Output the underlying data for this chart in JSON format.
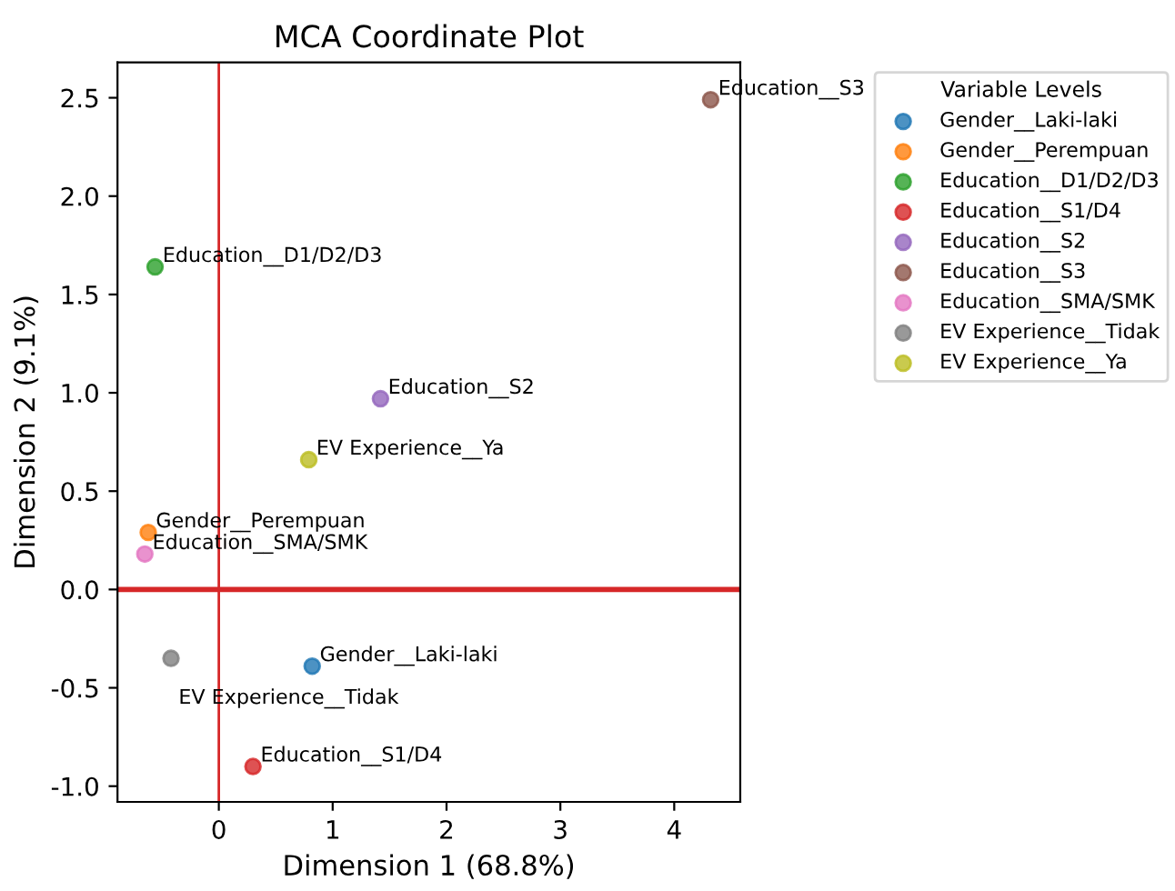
{
  "chart_data": {
    "type": "scatter",
    "title": "MCA Coordinate Plot",
    "xlabel": "Dimension 1 (68.8%)",
    "ylabel": "Dimension 2 (9.1%)",
    "legend_title": "Variable Levels",
    "legend": "top right",
    "xlim": [
      -0.89,
      4.58
    ],
    "ylim": [
      -1.08,
      2.68
    ],
    "xticks": [
      0,
      1,
      2,
      3,
      4
    ],
    "yticks": [
      {
        "value": -1,
        "label": "-1.0"
      },
      -0.5,
      {
        "value": 0,
        "label": "0.0"
      },
      0.5,
      {
        "value": 1,
        "label": "1.0"
      },
      1.5,
      {
        "value": 2,
        "label": "2.0"
      },
      2.5
    ],
    "grid": false,
    "marker": "circle",
    "series": [
      {
        "name": "Gender__Laki-laki",
        "color": "#1f77b4",
        "x": [
          0.82
        ],
        "values": [
          -0.39
        ]
      },
      {
        "name": "Gender__Perempuan",
        "color": "#ff7f0e",
        "x": [
          -0.62
        ],
        "values": [
          0.29
        ]
      },
      {
        "name": "Education__D1/D2/D3",
        "color": "#2ca02c",
        "x": [
          -0.56
        ],
        "values": [
          1.64
        ]
      },
      {
        "name": "Education__S1/D4",
        "color": "#d62728",
        "x": [
          0.3
        ],
        "values": [
          -0.9
        ]
      },
      {
        "name": "Education__S2",
        "color": "#9467bd",
        "x": [
          1.42
        ],
        "values": [
          0.97
        ]
      },
      {
        "name": "Education__S3",
        "color": "#8c564b",
        "x": [
          4.32
        ],
        "values": [
          2.49
        ]
      },
      {
        "name": "Education__SMA/SMK",
        "color": "#e377c2",
        "x": [
          -0.65
        ],
        "values": [
          0.18
        ]
      },
      {
        "name": "EV Experience__Tidak",
        "color": "#7f7f7f",
        "x": [
          -0.42
        ],
        "values": [
          -0.35
        ]
      },
      {
        "name": "EV Experience__Ya",
        "color": "#bcbd22",
        "x": [
          0.79
        ],
        "values": [
          0.66
        ]
      }
    ],
    "annotations": [
      {
        "text": "Gender__Laki-laki",
        "x": 0.82,
        "y": -0.39
      },
      {
        "text": "Gender__Perempuan",
        "x": -0.62,
        "y": 0.29
      },
      {
        "text": "Education__D1/D2/D3",
        "x": -0.56,
        "y": 1.64
      },
      {
        "text": "Education__S1/D4",
        "x": 0.3,
        "y": -0.9
      },
      {
        "text": "Education__S2",
        "x": 1.42,
        "y": 0.97
      },
      {
        "text": "Education__S3",
        "x": 4.32,
        "y": 2.49
      },
      {
        "text": "Education__SMA/SMK",
        "x": -0.65,
        "y": 0.18
      },
      {
        "text": "EV Experience__Tidak",
        "x": -0.42,
        "y": -0.35
      },
      {
        "text": "EV Experience__Ya",
        "x": 0.79,
        "y": 0.66
      }
    ],
    "ref_lines": [
      {
        "axis": "y",
        "value": 0,
        "color": "#d62728",
        "line_style": "solid"
      },
      {
        "axis": "x",
        "value": 0,
        "color": "#d62728",
        "line_style": "solid"
      }
    ]
  }
}
